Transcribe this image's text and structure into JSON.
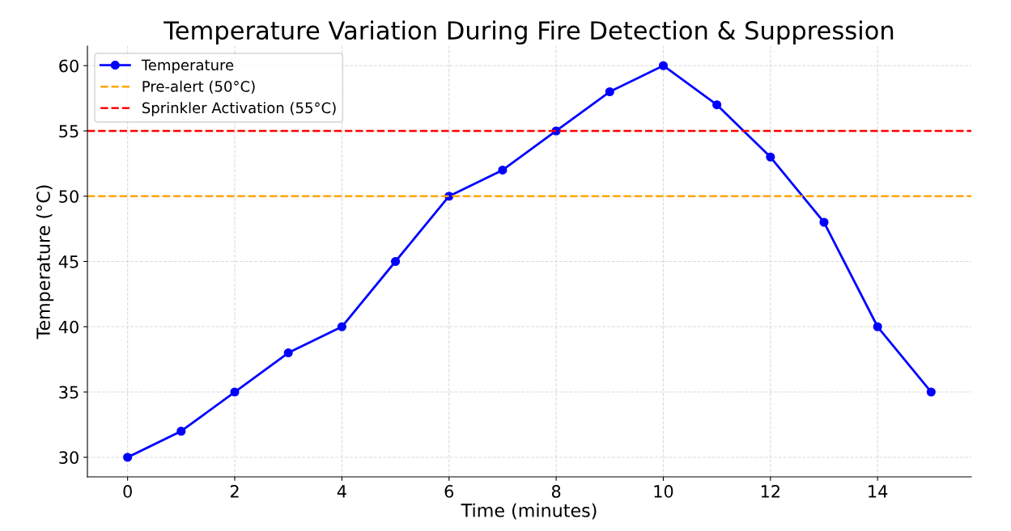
{
  "chart_data": {
    "type": "line",
    "title": "Temperature Variation During Fire Detection & Suppression",
    "xlabel": "Time (minutes)",
    "ylabel": "Temperature (°C)",
    "x": [
      0,
      1,
      2,
      3,
      4,
      5,
      6,
      7,
      8,
      9,
      10,
      11,
      12,
      13,
      14,
      15
    ],
    "series": [
      {
        "name": "Temperature",
        "color": "#0000ff",
        "values": [
          30,
          32,
          35,
          38,
          40,
          45,
          50,
          52,
          55,
          58,
          60,
          57,
          53,
          48,
          40,
          35
        ]
      }
    ],
    "marker": "circle",
    "line_style": "solid",
    "ref_lines": [
      {
        "axis": "y",
        "value": 50,
        "label": "Pre-alert (50°C)",
        "color": "#ffa500",
        "line_style": "dashed"
      },
      {
        "axis": "y",
        "value": 55,
        "label": "Sprinkler Activation (55°C)",
        "color": "#ff0000",
        "line_style": "dashed"
      }
    ],
    "xlim": [
      -0.75,
      15.75
    ],
    "ylim": [
      28.5,
      61.5
    ],
    "xticks": [
      0,
      2,
      4,
      6,
      8,
      10,
      12,
      14
    ],
    "yticks": [
      30,
      35,
      40,
      45,
      50,
      55,
      60
    ],
    "grid": true,
    "legend": "top left"
  }
}
